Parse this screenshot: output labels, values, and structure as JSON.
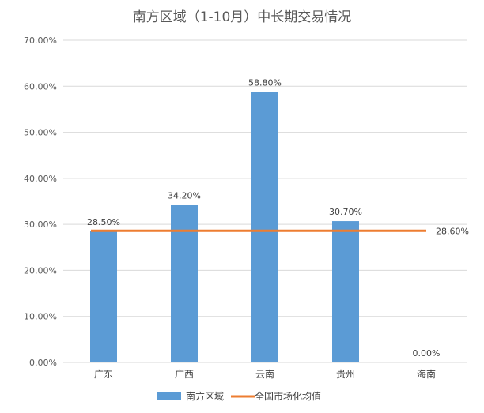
{
  "chart_data": {
    "type": "bar",
    "title": "南方区域（1-10月）中长期交易情况",
    "categories": [
      "广东",
      "广西",
      "云南",
      "贵州",
      "海南"
    ],
    "series": [
      {
        "name": "南方区域",
        "type": "bar",
        "values": [
          28.5,
          34.2,
          58.8,
          30.7,
          0.0
        ],
        "data_labels": [
          "28.50%",
          "34.20%",
          "58.80%",
          "30.70%",
          "0.00%"
        ],
        "color": "#5b9bd5"
      },
      {
        "name": "全国市场化均值",
        "type": "line",
        "value": 28.6,
        "data_label": "28.60%",
        "color": "#ed7d31"
      }
    ],
    "ylim": [
      0,
      70
    ],
    "yticks": [
      0,
      10,
      20,
      30,
      40,
      50,
      60,
      70
    ],
    "ytick_labels": [
      "0.00%",
      "10.00%",
      "20.00%",
      "30.00%",
      "40.00%",
      "50.00%",
      "60.00%",
      "70.00%"
    ],
    "grid": true,
    "legend_position": "bottom"
  }
}
